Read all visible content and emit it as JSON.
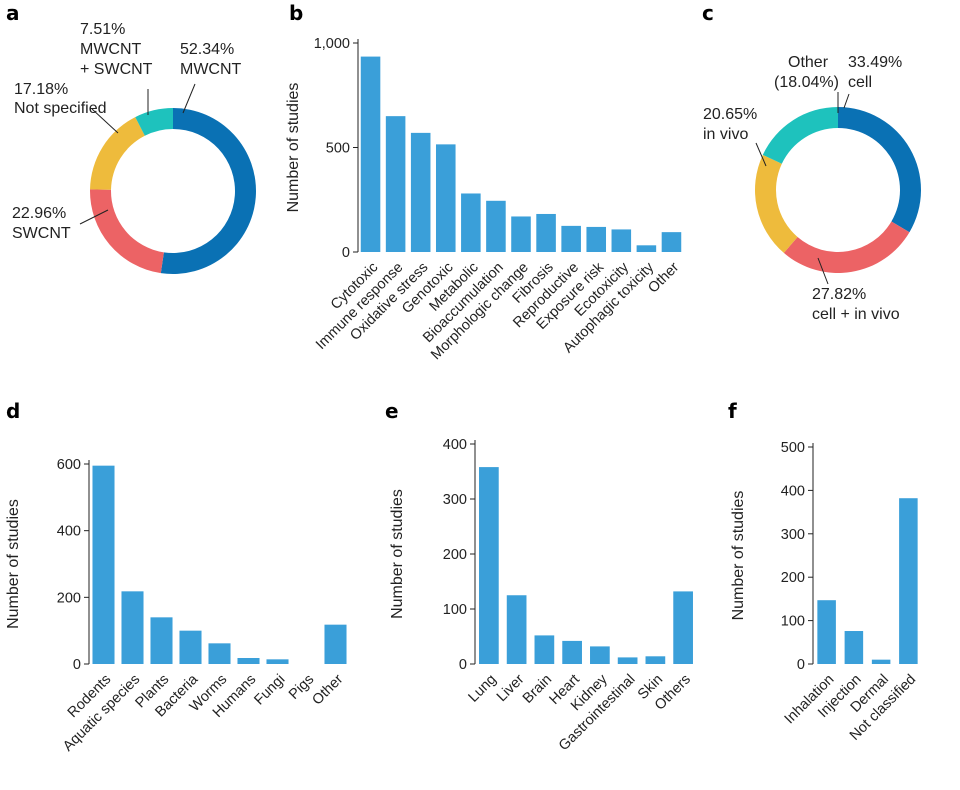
{
  "colors": {
    "bar": "#3a9fd9",
    "blue": "#0a71b4",
    "red": "#ec6365",
    "yellow": "#eebb3c",
    "teal": "#1ec2bd"
  },
  "chart_data": [
    {
      "panel": "a",
      "type": "pie",
      "donut": true,
      "slices": [
        {
          "label": "MWCNT",
          "value": 52.34,
          "pct": "52.34%",
          "color": "#0a71b4"
        },
        {
          "label": "SWCNT",
          "value": 22.96,
          "pct": "22.96%",
          "color": "#ec6365"
        },
        {
          "label": "Not specified",
          "value": 17.18,
          "pct": "17.18%",
          "color": "#eebb3c"
        },
        {
          "label": "MWCNT + SWCNT",
          "value": 7.51,
          "pct": "7.51%",
          "color": "#1ec2bd"
        }
      ]
    },
    {
      "panel": "b",
      "type": "bar",
      "ylabel": "Number of studies",
      "ylim": [
        0,
        1000
      ],
      "yticks": [
        {
          "v": 0,
          "t": "0"
        },
        {
          "v": 500,
          "t": "500"
        },
        {
          "v": 1000,
          "t": "1,000"
        }
      ],
      "categories": [
        "Cytotoxic",
        "Immune response",
        "Oxidative stress",
        "Genotoxic",
        "Metabolic",
        "Bioaccumulation",
        "Morphologic change",
        "Fibrosis",
        "Reproductive",
        "Exposure risk",
        "Ecotoxicity",
        "Autophagic toxicity",
        "Other"
      ],
      "values": [
        935,
        650,
        570,
        515,
        280,
        245,
        170,
        182,
        125,
        120,
        108,
        32,
        95
      ]
    },
    {
      "panel": "c",
      "type": "pie",
      "donut": true,
      "slices": [
        {
          "label": "cell",
          "value": 33.49,
          "pct": "33.49%",
          "color": "#0a71b4"
        },
        {
          "label": "cell + in vivo",
          "value": 27.82,
          "pct": "27.82%",
          "color": "#ec6365"
        },
        {
          "label": "in vivo",
          "value": 20.65,
          "pct": "20.65%",
          "color": "#eebb3c"
        },
        {
          "label": "Other",
          "value": 18.04,
          "pct": "(18.04%)",
          "color": "#1ec2bd"
        }
      ]
    },
    {
      "panel": "d",
      "type": "bar",
      "ylabel": "Number of studies",
      "ylim": [
        0,
        600
      ],
      "yticks": [
        {
          "v": 0,
          "t": "0"
        },
        {
          "v": 200,
          "t": "200"
        },
        {
          "v": 400,
          "t": "400"
        },
        {
          "v": 600,
          "t": "600"
        }
      ],
      "categories": [
        "Rodents",
        "Aquatic species",
        "Plants",
        "Bacteria",
        "Worms",
        "Humans",
        "Fungi",
        "Pigs",
        "Other"
      ],
      "values": [
        595,
        218,
        140,
        100,
        62,
        18,
        14,
        0,
        118
      ]
    },
    {
      "panel": "e",
      "type": "bar",
      "ylabel": "Number of studies",
      "ylim": [
        0,
        400
      ],
      "yticks": [
        {
          "v": 0,
          "t": "0"
        },
        {
          "v": 100,
          "t": "100"
        },
        {
          "v": 200,
          "t": "200"
        },
        {
          "v": 300,
          "t": "300"
        },
        {
          "v": 400,
          "t": "400"
        }
      ],
      "categories": [
        "Lung",
        "Liver",
        "Brain",
        "Heart",
        "Kidney",
        "Gastrointestinal",
        "Skin",
        "Others"
      ],
      "values": [
        358,
        125,
        52,
        42,
        32,
        12,
        14,
        132
      ]
    },
    {
      "panel": "f",
      "type": "bar",
      "ylabel": "Number of studies",
      "ylim": [
        0,
        500
      ],
      "yticks": [
        {
          "v": 0,
          "t": "0"
        },
        {
          "v": 100,
          "t": "100"
        },
        {
          "v": 200,
          "t": "200"
        },
        {
          "v": 300,
          "t": "300"
        },
        {
          "v": 400,
          "t": "400"
        },
        {
          "v": 500,
          "t": "500"
        }
      ],
      "categories": [
        "Inhalation",
        "Injection",
        "Dermal",
        "Not classified"
      ],
      "values": [
        147,
        76,
        10,
        382
      ]
    }
  ]
}
